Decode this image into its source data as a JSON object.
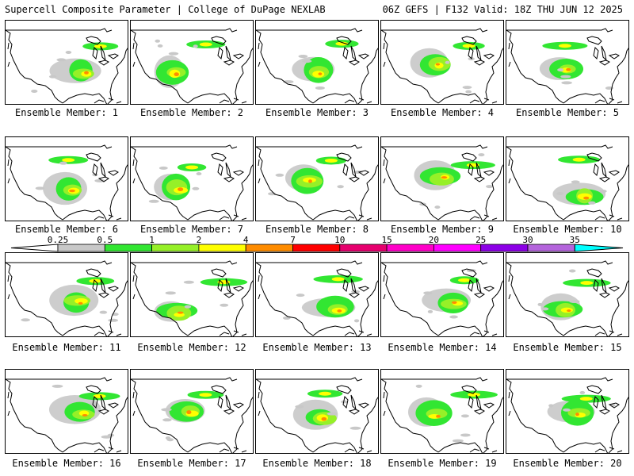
{
  "header": {
    "title_left": "Supercell Composite Parameter | College of DuPage NEXLAB",
    "title_right": "06Z GEFS | F132 Valid: 18Z THU JUN 12 2025"
  },
  "member_label_prefix": "Ensemble Member: ",
  "members": [
    {
      "id": "1",
      "label": "Ensemble Member: 1"
    },
    {
      "id": "2",
      "label": "Ensemble Member: 2"
    },
    {
      "id": "3",
      "label": "Ensemble Member: 3"
    },
    {
      "id": "4",
      "label": "Ensemble Member: 4"
    },
    {
      "id": "5",
      "label": "Ensemble Member: 5"
    },
    {
      "id": "6",
      "label": "Ensemble Member: 6"
    },
    {
      "id": "7",
      "label": "Ensemble Member: 7"
    },
    {
      "id": "8",
      "label": "Ensemble Member: 8"
    },
    {
      "id": "9",
      "label": "Ensemble Member: 9"
    },
    {
      "id": "10",
      "label": "Ensemble Member: 10"
    },
    {
      "id": "11",
      "label": "Ensemble Member: 11"
    },
    {
      "id": "12",
      "label": "Ensemble Member: 12"
    },
    {
      "id": "13",
      "label": "Ensemble Member: 13"
    },
    {
      "id": "14",
      "label": "Ensemble Member: 14"
    },
    {
      "id": "15",
      "label": "Ensemble Member: 15"
    },
    {
      "id": "16",
      "label": "Ensemble Member: 16"
    },
    {
      "id": "17",
      "label": "Ensemble Member: 17"
    },
    {
      "id": "18",
      "label": "Ensemble Member: 18"
    },
    {
      "id": "19",
      "label": "Ensemble Member: 19"
    },
    {
      "id": "20",
      "label": "Ensemble Member: 20"
    }
  ],
  "legend": {
    "ticks": [
      "0.25",
      "0.5",
      "1",
      "2",
      "4",
      "7",
      "10",
      "15",
      "20",
      "25",
      "30",
      "35"
    ],
    "colors": [
      "#c8c8c8",
      "#32e632",
      "#96f028",
      "#ffff00",
      "#ff8c00",
      "#ff0000",
      "#e6006e",
      "#ff00c8",
      "#ff00ff",
      "#8c00e6",
      "#b464dc",
      "#00ffff"
    ]
  }
}
